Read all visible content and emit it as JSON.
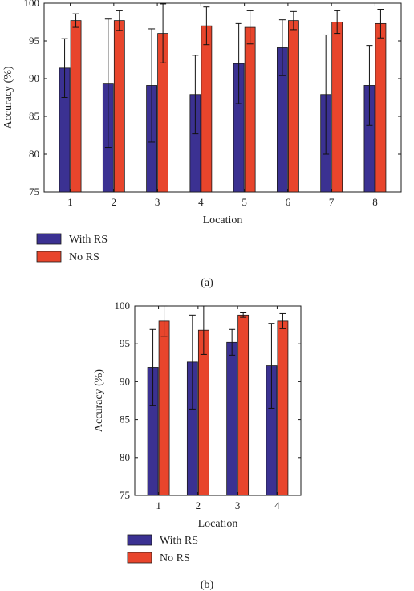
{
  "colors": {
    "with_rs": "#3b3192",
    "no_rs": "#e8452c",
    "edge": "#1a1a1a",
    "error": "#111111"
  },
  "chart_data": [
    {
      "type": "bar",
      "panel_label": "(a)",
      "xlabel": "Location",
      "ylabel": "Accuracy (%)",
      "ylim": [
        75,
        100
      ],
      "yticks": [
        75,
        80,
        85,
        90,
        95,
        100
      ],
      "categories": [
        "1",
        "2",
        "3",
        "4",
        "5",
        "6",
        "7",
        "8"
      ],
      "series": [
        {
          "name": "With RS",
          "values": [
            91.4,
            89.4,
            89.1,
            87.9,
            92.0,
            94.1,
            87.9,
            89.1
          ],
          "errors": [
            3.9,
            8.5,
            7.5,
            5.2,
            5.3,
            3.7,
            7.9,
            5.3
          ]
        },
        {
          "name": "No RS",
          "values": [
            97.7,
            97.7,
            96.0,
            97.0,
            96.8,
            97.7,
            97.5,
            97.3
          ],
          "errors": [
            0.9,
            1.3,
            3.9,
            2.5,
            2.2,
            1.2,
            1.5,
            1.9
          ]
        }
      ],
      "legend_position": "bottom-left"
    },
    {
      "type": "bar",
      "panel_label": "(b)",
      "xlabel": "Location",
      "ylabel": "Accuracy (%)",
      "ylim": [
        75,
        100
      ],
      "yticks": [
        75,
        80,
        85,
        90,
        95,
        100
      ],
      "categories": [
        "1",
        "2",
        "3",
        "4"
      ],
      "series": [
        {
          "name": "With RS",
          "values": [
            91.9,
            92.6,
            95.2,
            92.1
          ],
          "errors": [
            5.0,
            6.2,
            1.7,
            5.6
          ]
        },
        {
          "name": "No RS",
          "values": [
            98.0,
            96.8,
            98.8,
            98.0
          ],
          "errors": [
            2.0,
            3.2,
            0.3,
            1.0
          ]
        }
      ],
      "legend_position": "bottom-left"
    }
  ]
}
